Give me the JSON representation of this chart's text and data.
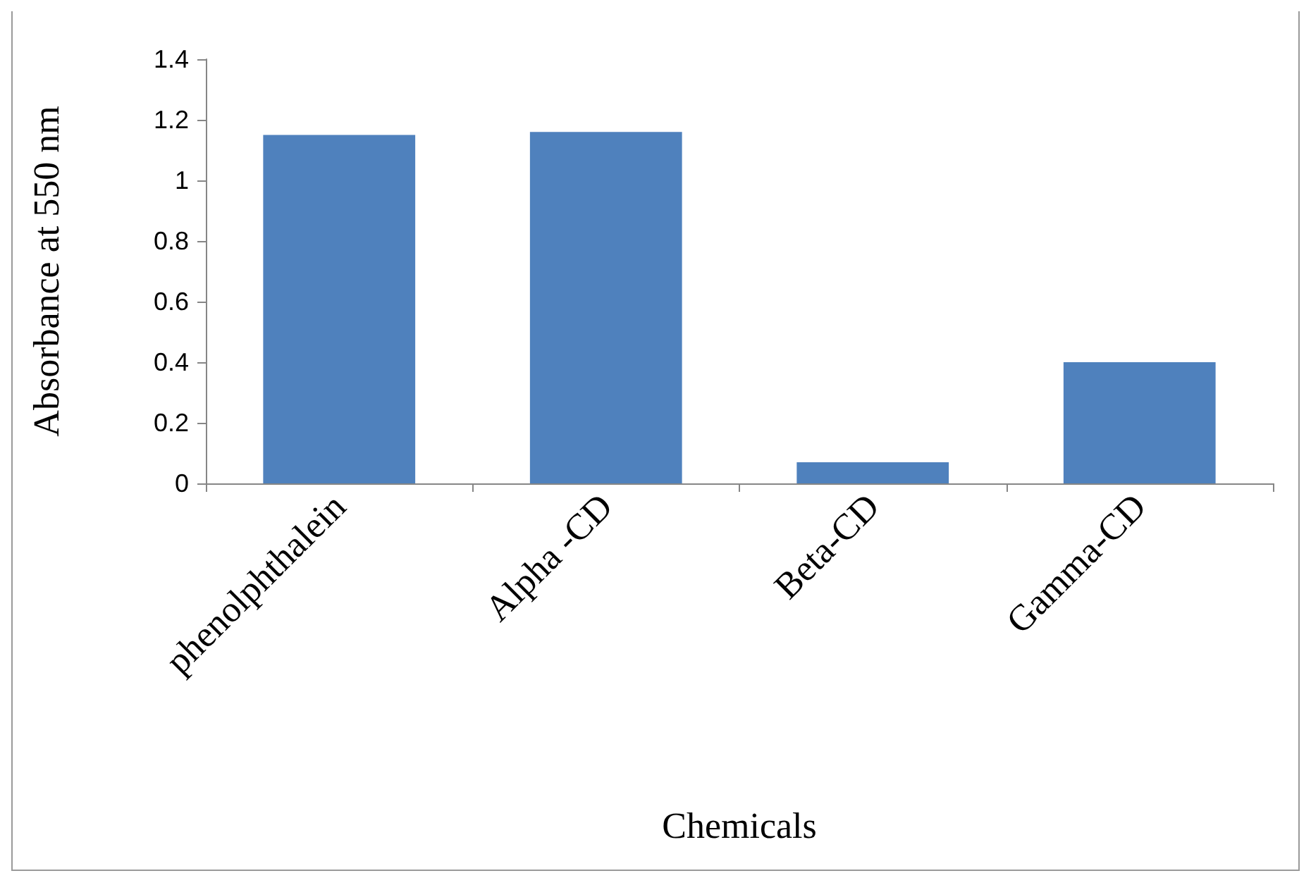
{
  "chart_data": {
    "type": "bar",
    "xlabel": "Chemicals",
    "ylabel": "Absorbance at 550 nm",
    "categories": [
      "phenolphthalein",
      "Alpha -CD",
      "Beta-CD",
      "Gamma-CD"
    ],
    "values": [
      1.15,
      1.16,
      0.07,
      0.4
    ],
    "color": "#4f81bd",
    "ylim": [
      0,
      1.4
    ],
    "yticks": [
      0,
      0.2,
      0.4,
      0.6,
      0.8,
      1,
      1.2,
      1.4
    ],
    "grid": false
  }
}
